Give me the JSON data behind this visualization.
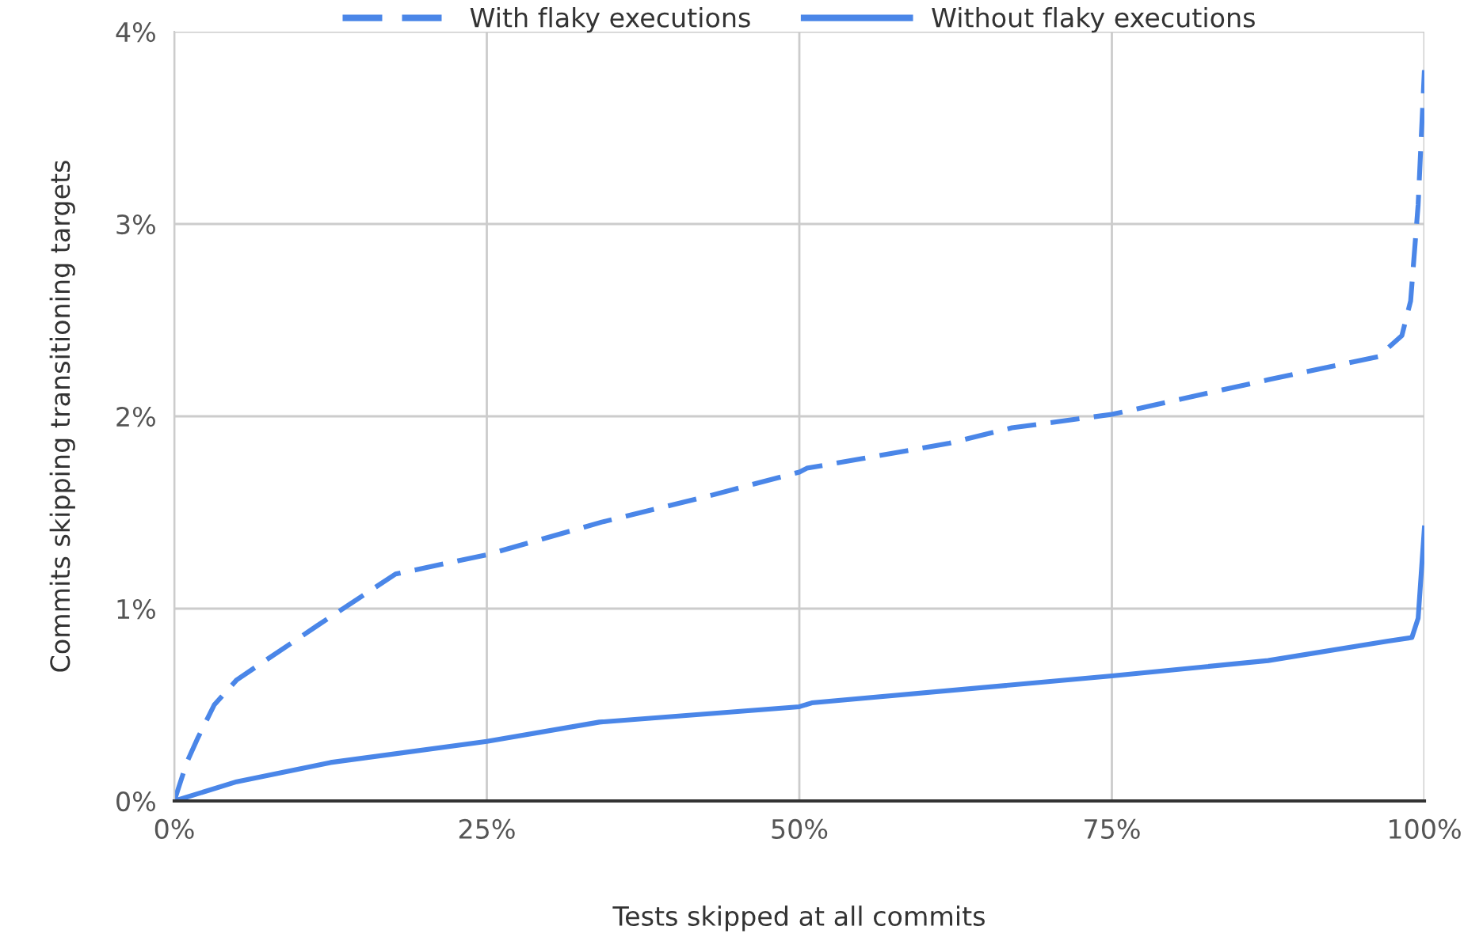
{
  "chart_data": {
    "type": "line",
    "xlabel": "Tests skipped at all commits",
    "ylabel": "Commits skipping transitioning targets",
    "xlim": [
      0,
      100
    ],
    "ylim": [
      0,
      4
    ],
    "xticks": [
      {
        "value": 0,
        "label": "0%"
      },
      {
        "value": 25,
        "label": "25%"
      },
      {
        "value": 50,
        "label": "50%"
      },
      {
        "value": 75,
        "label": "75%"
      },
      {
        "value": 100,
        "label": "100%"
      }
    ],
    "yticks": [
      {
        "value": 0,
        "label": "0%"
      },
      {
        "value": 1,
        "label": "1%"
      },
      {
        "value": 2,
        "label": "2%"
      },
      {
        "value": 3,
        "label": "3%"
      },
      {
        "value": 4,
        "label": "4%"
      }
    ],
    "grid": true,
    "legend": "top",
    "marker": "none",
    "series": [
      {
        "name": "With flaky executions",
        "color": "#4a86e8",
        "line_style": "dashed",
        "x": [
          0,
          0.25,
          1,
          1.9,
          3.2,
          5,
          11.4,
          17.7,
          25,
          34.2,
          43,
          50,
          50.6,
          62,
          67,
          75,
          87.5,
          96.3,
          98.2,
          98.9,
          99.5,
          100
        ],
        "values": [
          0,
          0.05,
          0.2,
          0.33,
          0.5,
          0.63,
          0.91,
          1.18,
          1.28,
          1.45,
          1.59,
          1.71,
          1.73,
          1.86,
          1.94,
          2.01,
          2.19,
          2.31,
          2.42,
          2.6,
          3.1,
          3.8
        ]
      },
      {
        "name": "Without flaky executions",
        "color": "#4a86e8",
        "line_style": "solid",
        "x": [
          0,
          5,
          12.5,
          25,
          34,
          50,
          51,
          75,
          87.5,
          97,
          99,
          99.5,
          100
        ],
        "values": [
          0,
          0.1,
          0.2,
          0.31,
          0.41,
          0.49,
          0.51,
          0.65,
          0.73,
          0.83,
          0.85,
          0.95,
          1.42
        ]
      }
    ]
  }
}
